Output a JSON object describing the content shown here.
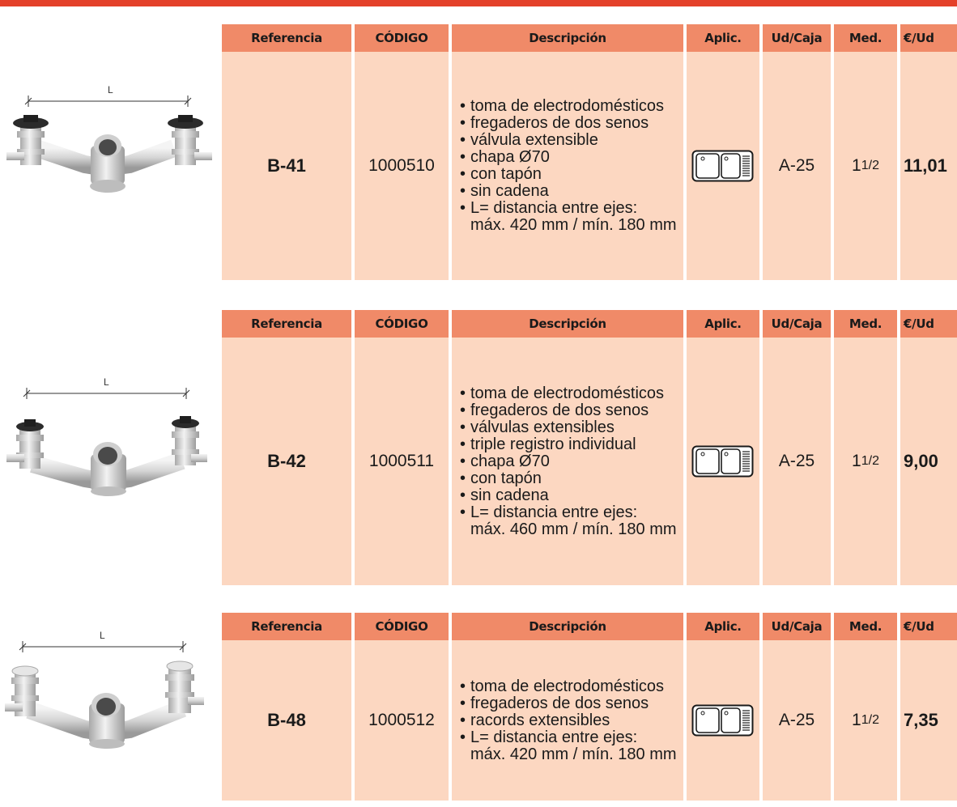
{
  "accent_color": "#e4412a",
  "header_color": "#f08a68",
  "body_color": "#fcd7c1",
  "headers": {
    "referencia": "Referencia",
    "codigo": "CÓDIGO",
    "descripcion": "Descripción",
    "aplic": "Aplic.",
    "ud_caja": "Ud/Caja",
    "med": "Med.",
    "precio": "€/Ud"
  },
  "products": [
    {
      "dimension_label": "L",
      "referencia": "B-41",
      "codigo": "1000510",
      "descripcion": [
        "toma de electrodomésticos",
        "fregaderos de dos senos",
        "válvula extensible",
        "chapa Ø70",
        "con tapón",
        "sin cadena",
        "L= distancia entre ejes:"
      ],
      "descripcion_cont": "máx. 420 mm / mín. 180 mm",
      "aplic_icon": "double-sink-icon",
      "ud_caja": "A-25",
      "med_whole": "1",
      "med_frac": "1/2",
      "precio": "11,01"
    },
    {
      "dimension_label": "L",
      "referencia": "B-42",
      "codigo": "1000511",
      "descripcion": [
        "toma de electrodomésticos",
        "fregaderos de dos senos",
        "válvulas extensibles",
        "triple registro individual",
        "chapa Ø70",
        "con tapón",
        "sin cadena",
        "L= distancia entre ejes:"
      ],
      "descripcion_cont": "máx. 460 mm / mín. 180 mm",
      "aplic_icon": "double-sink-icon",
      "ud_caja": "A-25",
      "med_whole": "1",
      "med_frac": "1/2",
      "precio": "9,00"
    },
    {
      "dimension_label": "L",
      "referencia": "B-48",
      "codigo": "1000512",
      "descripcion": [
        "toma de electrodomésticos",
        "fregaderos de dos senos",
        "racords extensibles",
        "L= distancia entre ejes:"
      ],
      "descripcion_cont": "máx. 420 mm / mín. 180 mm",
      "aplic_icon": "double-sink-icon",
      "ud_caja": "A-25",
      "med_whole": "1",
      "med_frac": "1/2",
      "precio": "7,35"
    }
  ]
}
